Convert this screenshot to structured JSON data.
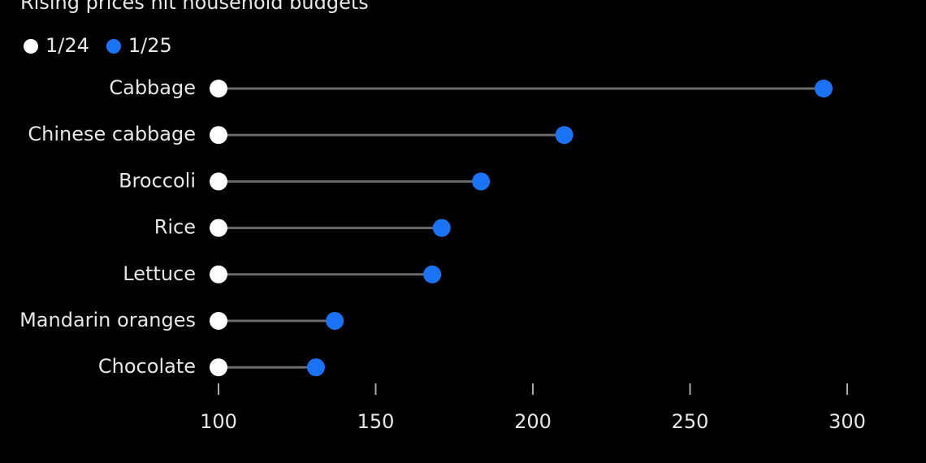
{
  "chart_data": {
    "type": "dumbbell",
    "title": "Rising prices hit household budgets",
    "categories": [
      "Cabbage",
      "Chinese cabbage",
      "Broccoli",
      "Rice",
      "Lettuce",
      "Mandarin oranges",
      "Chocolate"
    ],
    "series": [
      {
        "name": "1/24",
        "color": "#ffffff",
        "values": [
          100,
          100,
          100,
          100,
          100,
          100,
          100
        ]
      },
      {
        "name": "1/25",
        "color": "#1a73f5",
        "values": [
          292.5,
          210,
          183.5,
          171,
          168,
          137,
          131
        ]
      }
    ],
    "xlim": [
      100,
      320
    ],
    "xticks": [
      100,
      150,
      200,
      250,
      300
    ]
  }
}
